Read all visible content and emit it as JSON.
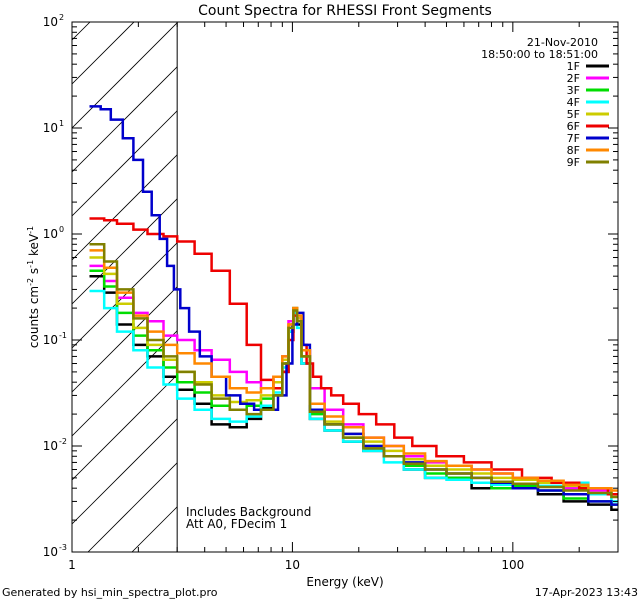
{
  "chart_data": {
    "type": "line",
    "title": "Count Spectra for RHESSI Front Segments",
    "xlabel": "Energy (keV)",
    "ylabel_parts": [
      "counts cm",
      "-2",
      " s",
      "-1",
      " keV",
      "-1"
    ],
    "xscale": "log",
    "yscale": "log",
    "xlim": [
      1,
      300
    ],
    "ylim": [
      0.001,
      100
    ],
    "xtick_labels": [
      {
        "value": 1,
        "label": "1"
      },
      {
        "value": 10,
        "label": "10"
      },
      {
        "value": 100,
        "label": "100"
      }
    ],
    "ytick_labels": [
      {
        "value": 100,
        "base": "10",
        "exp": "2"
      },
      {
        "value": 10,
        "base": "10",
        "exp": "1"
      },
      {
        "value": 1,
        "base": "10",
        "exp": "0"
      },
      {
        "value": 0.1,
        "base": "10",
        "exp": "-1"
      },
      {
        "value": 0.01,
        "base": "10",
        "exp": "-2"
      },
      {
        "value": 0.001,
        "base": "10",
        "exp": "-3"
      }
    ],
    "hatched_region_max_keV": 3,
    "date": "21-Nov-2010",
    "time_range": "18:50:00 to 18:51:00",
    "annotations": [
      "Includes Background",
      "Att A0, FDecim 1"
    ],
    "series": [
      {
        "name": "1F",
        "color": "#000000",
        "x": [
          1.2,
          1.4,
          1.6,
          1.9,
          2.2,
          2.6,
          3.0,
          3.6,
          4.3,
          5.2,
          6.2,
          7.2,
          8.2,
          9.0,
          9.6,
          10.1,
          10.5,
          11.0,
          12,
          14,
          17,
          21,
          26,
          32,
          40,
          50,
          65,
          80,
          100,
          130,
          170,
          220,
          280
        ],
        "values": [
          0.4,
          0.28,
          0.14,
          0.09,
          0.07,
          0.045,
          0.034,
          0.025,
          0.016,
          0.015,
          0.018,
          0.023,
          0.03,
          0.05,
          0.12,
          0.2,
          0.14,
          0.06,
          0.018,
          0.014,
          0.011,
          0.009,
          0.008,
          0.006,
          0.005,
          0.005,
          0.004,
          0.0045,
          0.004,
          0.0035,
          0.003,
          0.0028,
          0.0025
        ]
      },
      {
        "name": "2F",
        "color": "#ff00ff",
        "x": [
          1.2,
          1.4,
          1.6,
          1.9,
          2.2,
          2.6,
          3.0,
          3.6,
          4.3,
          5.2,
          6.2,
          7.2,
          8.2,
          9.0,
          9.6,
          10.1,
          10.5,
          11.0,
          12,
          14,
          17,
          21,
          26,
          32,
          40,
          50,
          65,
          80,
          100,
          130,
          170,
          220,
          280
        ],
        "values": [
          0.5,
          0.36,
          0.25,
          0.18,
          0.15,
          0.11,
          0.1,
          0.08,
          0.065,
          0.05,
          0.04,
          0.035,
          0.045,
          0.07,
          0.15,
          0.19,
          0.16,
          0.08,
          0.035,
          0.022,
          0.016,
          0.012,
          0.01,
          0.008,
          0.007,
          0.0065,
          0.006,
          0.0055,
          0.005,
          0.0045,
          0.004,
          0.0038,
          0.0035
        ]
      },
      {
        "name": "3F",
        "color": "#00dd00",
        "x": [
          1.2,
          1.4,
          1.6,
          1.9,
          2.2,
          2.6,
          3.0,
          3.6,
          4.3,
          5.2,
          6.2,
          7.2,
          8.2,
          9.0,
          9.6,
          10.1,
          10.5,
          11.0,
          12,
          14,
          17,
          21,
          26,
          32,
          40,
          50,
          65,
          80,
          100,
          130,
          170,
          220,
          280
        ],
        "values": [
          0.45,
          0.32,
          0.18,
          0.11,
          0.08,
          0.055,
          0.04,
          0.032,
          0.024,
          0.022,
          0.024,
          0.028,
          0.035,
          0.06,
          0.13,
          0.19,
          0.15,
          0.07,
          0.02,
          0.016,
          0.012,
          0.01,
          0.008,
          0.0065,
          0.0055,
          0.005,
          0.0045,
          0.004,
          0.0042,
          0.0038,
          0.0032,
          0.003,
          0.0028
        ]
      },
      {
        "name": "4F",
        "color": "#00ffff",
        "x": [
          1.2,
          1.4,
          1.6,
          1.9,
          2.2,
          2.6,
          3.0,
          3.6,
          4.3,
          5.2,
          6.2,
          7.2,
          8.2,
          9.0,
          9.6,
          10.1,
          10.5,
          11.0,
          12,
          14,
          17,
          21,
          26,
          32,
          40,
          50,
          65,
          80,
          100,
          130,
          170,
          220,
          280
        ],
        "values": [
          0.29,
          0.2,
          0.12,
          0.08,
          0.055,
          0.038,
          0.028,
          0.022,
          0.018,
          0.017,
          0.019,
          0.024,
          0.032,
          0.055,
          0.12,
          0.18,
          0.13,
          0.06,
          0.018,
          0.014,
          0.011,
          0.009,
          0.007,
          0.006,
          0.005,
          0.0048,
          0.0045,
          0.0043,
          0.004,
          0.0042,
          0.0045,
          0.0035,
          0.003
        ]
      },
      {
        "name": "5F",
        "color": "#cccc00",
        "x": [
          1.2,
          1.4,
          1.6,
          1.9,
          2.2,
          2.6,
          3.0,
          3.6,
          4.3,
          5.2,
          6.2,
          7.2,
          8.2,
          9.0,
          9.6,
          10.1,
          10.5,
          11.0,
          12,
          14,
          17,
          21,
          26,
          32,
          40,
          50,
          65,
          80,
          100,
          130,
          170,
          220,
          280
        ],
        "values": [
          0.6,
          0.42,
          0.22,
          0.13,
          0.09,
          0.065,
          0.05,
          0.04,
          0.03,
          0.026,
          0.027,
          0.03,
          0.04,
          0.065,
          0.14,
          0.2,
          0.16,
          0.07,
          0.022,
          0.017,
          0.013,
          0.011,
          0.009,
          0.0075,
          0.0065,
          0.006,
          0.0055,
          0.005,
          0.0048,
          0.0045,
          0.0042,
          0.004,
          0.0035
        ]
      },
      {
        "name": "6F",
        "color": "#ee0000",
        "x": [
          1.2,
          1.4,
          1.6,
          1.9,
          2.2,
          2.6,
          3.0,
          3.6,
          4.3,
          5.2,
          6.2,
          7.2,
          8.2,
          9.0,
          9.6,
          10.1,
          10.5,
          11.0,
          11.6,
          12.4,
          13.5,
          15,
          17,
          20,
          24,
          29,
          35,
          45,
          60,
          80,
          110,
          150,
          200,
          270
        ],
        "values": [
          1.4,
          1.35,
          1.25,
          1.1,
          1.0,
          0.95,
          0.85,
          0.65,
          0.45,
          0.22,
          0.09,
          0.042,
          0.035,
          0.05,
          0.1,
          0.17,
          0.15,
          0.09,
          0.06,
          0.045,
          0.035,
          0.03,
          0.025,
          0.02,
          0.016,
          0.012,
          0.01,
          0.008,
          0.007,
          0.006,
          0.005,
          0.0045,
          0.004,
          0.0035
        ]
      },
      {
        "name": "7F",
        "color": "#0000cc",
        "x": [
          1.2,
          1.35,
          1.5,
          1.7,
          1.9,
          2.1,
          2.3,
          2.5,
          2.7,
          2.9,
          3.1,
          3.4,
          3.8,
          4.3,
          5.0,
          5.8,
          6.7,
          7.7,
          8.6,
          9.4,
          10.0,
          10.5,
          11.2,
          12,
          14,
          17,
          21,
          26,
          32,
          40,
          50,
          65,
          80,
          100,
          130,
          170,
          220,
          280
        ],
        "values": [
          16,
          15,
          12,
          8,
          5,
          2.5,
          1.5,
          0.9,
          0.5,
          0.3,
          0.2,
          0.12,
          0.07,
          0.045,
          0.03,
          0.025,
          0.022,
          0.022,
          0.03,
          0.06,
          0.14,
          0.18,
          0.09,
          0.022,
          0.016,
          0.013,
          0.01,
          0.008,
          0.007,
          0.006,
          0.0055,
          0.005,
          0.0045,
          0.004,
          0.0038,
          0.0035,
          0.003,
          0.0028
        ]
      },
      {
        "name": "8F",
        "color": "#ff8800",
        "x": [
          1.2,
          1.4,
          1.6,
          1.9,
          2.2,
          2.6,
          3.0,
          3.6,
          4.3,
          5.2,
          6.2,
          7.2,
          8.2,
          9.0,
          9.6,
          10.1,
          10.5,
          11.0,
          12,
          14,
          17,
          21,
          26,
          32,
          40,
          50,
          65,
          80,
          100,
          130,
          170,
          220,
          280
        ],
        "values": [
          0.7,
          0.48,
          0.28,
          0.17,
          0.12,
          0.09,
          0.075,
          0.06,
          0.045,
          0.035,
          0.032,
          0.035,
          0.045,
          0.07,
          0.14,
          0.2,
          0.17,
          0.08,
          0.025,
          0.019,
          0.015,
          0.012,
          0.01,
          0.0085,
          0.0072,
          0.0065,
          0.006,
          0.0055,
          0.005,
          0.0047,
          0.0043,
          0.004,
          0.0038
        ]
      },
      {
        "name": "9F",
        "color": "#808000",
        "x": [
          1.2,
          1.4,
          1.6,
          1.9,
          2.2,
          2.6,
          3.0,
          3.6,
          4.3,
          5.2,
          6.2,
          7.2,
          8.2,
          9.0,
          9.6,
          10.1,
          10.5,
          11.0,
          12,
          14,
          17,
          21,
          26,
          32,
          40,
          50,
          65,
          80,
          100,
          130,
          170,
          220,
          280
        ],
        "values": [
          0.8,
          0.55,
          0.3,
          0.16,
          0.1,
          0.07,
          0.05,
          0.038,
          0.028,
          0.022,
          0.02,
          0.022,
          0.03,
          0.06,
          0.13,
          0.19,
          0.15,
          0.07,
          0.021,
          0.016,
          0.012,
          0.0095,
          0.008,
          0.0068,
          0.006,
          0.0055,
          0.005,
          0.0046,
          0.0044,
          0.0041,
          0.0038,
          0.0036,
          0.0033
        ]
      }
    ]
  },
  "footer": {
    "left": "Generated by hsi_min_spectra_plot.pro",
    "right": "17-Apr-2023 13:43"
  }
}
